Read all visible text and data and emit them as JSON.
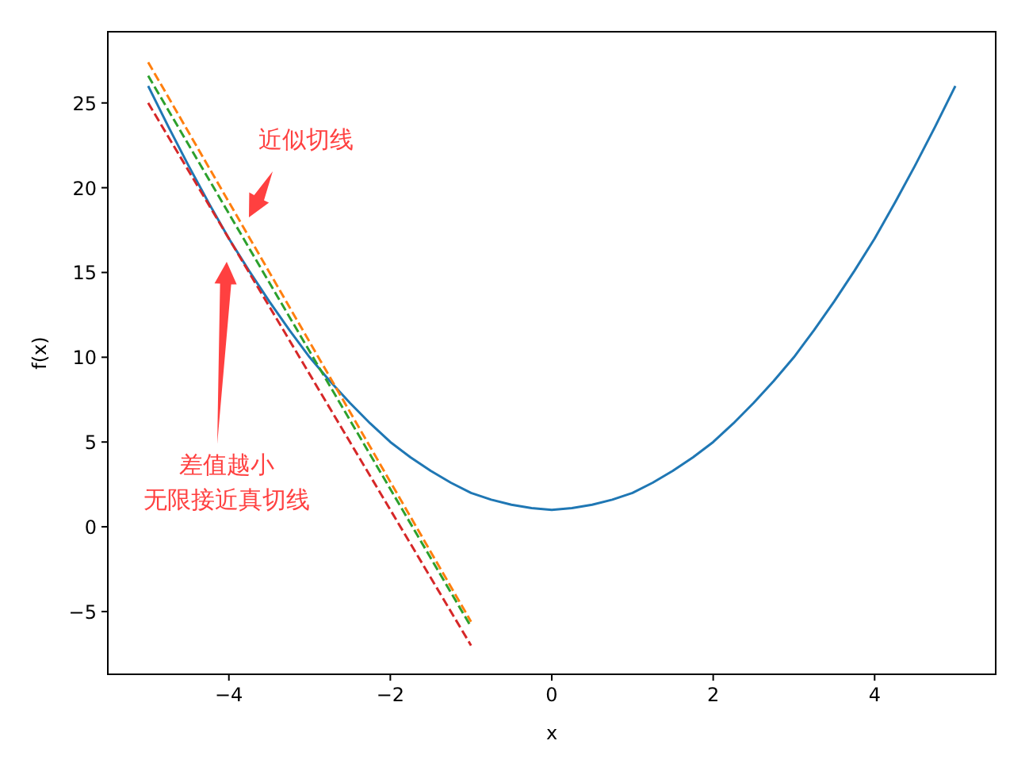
{
  "chart_data": {
    "type": "line",
    "xlabel": "x",
    "ylabel": "f(x)",
    "xlim": [
      -5.5,
      5.5
    ],
    "ylim": [
      -8.7,
      29.2
    ],
    "xticks": [
      {
        "value": -4,
        "label": "−4"
      },
      {
        "value": -2,
        "label": "−2"
      },
      0,
      2,
      4
    ],
    "yticks": [
      {
        "value": -5,
        "label": "−5"
      },
      0,
      5,
      10,
      15,
      20,
      25
    ],
    "grid": false,
    "series": [
      {
        "color": "#1f77b4",
        "line_style": "solid",
        "x": [
          -5,
          -4.75,
          -4.5,
          -4.25,
          -4,
          -3.75,
          -3.5,
          -3.25,
          -3,
          -2.75,
          -2.5,
          -2.25,
          -2,
          -1.75,
          -1.5,
          -1.25,
          -1,
          -0.75,
          -0.5,
          -0.25,
          0,
          0.25,
          0.5,
          0.75,
          1,
          1.25,
          1.5,
          1.75,
          2,
          2.25,
          2.5,
          2.75,
          3,
          3.25,
          3.5,
          3.75,
          4,
          4.25,
          4.5,
          4.75,
          5
        ],
        "values": [
          26,
          23.6,
          21.3,
          19.1,
          17,
          15.1,
          13.3,
          11.6,
          10,
          8.6,
          7.3,
          6.1,
          5,
          4.1,
          3.3,
          2.6,
          2,
          1.6,
          1.3,
          1.1,
          1,
          1.1,
          1.3,
          1.6,
          2,
          2.6,
          3.3,
          4.1,
          5,
          6.1,
          7.3,
          8.6,
          10,
          11.6,
          13.3,
          15.1,
          17,
          19.1,
          21.3,
          23.6,
          26
        ]
      },
      {
        "color": "#ff7f0e",
        "line_style": "dashed",
        "x": [
          -5,
          -1
        ],
        "values": [
          27.4,
          -5.6
        ]
      },
      {
        "color": "#2ca02c",
        "line_style": "dashed",
        "x": [
          -5,
          -1
        ],
        "values": [
          26.6,
          -5.9
        ]
      },
      {
        "color": "#d62728",
        "line_style": "dashed",
        "x": [
          -5,
          -1
        ],
        "values": [
          25,
          -7
        ]
      }
    ],
    "annotations": [
      "近似切线",
      "差值越小无限接近真切线"
    ]
  }
}
